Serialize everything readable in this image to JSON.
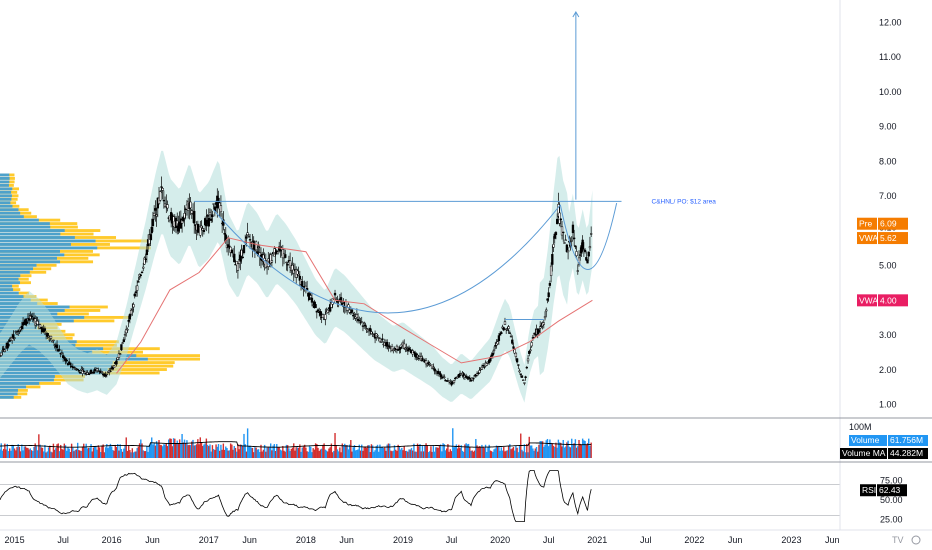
{
  "chart_data": {
    "type": "candlestick",
    "price_axis": {
      "ticks": [
        "12.00",
        "11.00",
        "10.00",
        "9.00",
        "8.00",
        "7.00",
        "6.10",
        "5.00",
        "4.00",
        "3.00",
        "2.00",
        "1.00"
      ],
      "tick_values": [
        12,
        11,
        10,
        9,
        8,
        7,
        6.1,
        5,
        4,
        3,
        2,
        1
      ],
      "ylim": [
        0.7,
        12.5
      ]
    },
    "time_axis": {
      "labels": [
        "2015",
        "Jul",
        "2016",
        "Jun",
        "2017",
        "Jun",
        "2018",
        "Jun",
        "2019",
        "Jul",
        "2020",
        "Jul",
        "2021",
        "Jul",
        "2022",
        "Jun",
        "2023",
        "Jun"
      ],
      "label_values": [
        2015.0,
        2015.5,
        2016.0,
        2016.42,
        2017.0,
        2017.42,
        2018.0,
        2018.42,
        2019.0,
        2019.5,
        2020.0,
        2020.5,
        2021.0,
        2021.5,
        2022.0,
        2022.42,
        2023.0,
        2023.42
      ],
      "xlim": [
        2014.85,
        2023.5
      ]
    },
    "series": [
      {
        "name": "Pre",
        "value": "6.09",
        "color": "#f57c00",
        "numeric": 6.09
      },
      {
        "name": "VWAP",
        "value": "5.62",
        "color": "#f57c00",
        "numeric": 5.62
      },
      {
        "name": "VWAP",
        "value": "4.00",
        "color": "#e91e63",
        "numeric": 4.0
      }
    ],
    "price_path": [
      [
        2014.85,
        2.4
      ],
      [
        2014.95,
        2.8
      ],
      [
        2015.05,
        3.2
      ],
      [
        2015.15,
        3.5
      ],
      [
        2015.25,
        3.3
      ],
      [
        2015.35,
        3.0
      ],
      [
        2015.45,
        2.6
      ],
      [
        2015.55,
        2.2
      ],
      [
        2015.65,
        2.0
      ],
      [
        2015.75,
        1.9
      ],
      [
        2015.85,
        2.0
      ],
      [
        2015.95,
        1.85
      ],
      [
        2016.05,
        2.2
      ],
      [
        2016.15,
        3.1
      ],
      [
        2016.25,
        4.2
      ],
      [
        2016.35,
        5.3
      ],
      [
        2016.45,
        6.5
      ],
      [
        2016.52,
        7.2
      ],
      [
        2016.6,
        6.4
      ],
      [
        2016.7,
        6.1
      ],
      [
        2016.8,
        6.8
      ],
      [
        2016.9,
        6.0
      ],
      [
        2017.0,
        6.3
      ],
      [
        2017.1,
        6.9
      ],
      [
        2017.2,
        5.5
      ],
      [
        2017.3,
        5.0
      ],
      [
        2017.4,
        5.8
      ],
      [
        2017.5,
        5.5
      ],
      [
        2017.6,
        5.0
      ],
      [
        2017.7,
        5.5
      ],
      [
        2017.8,
        5.2
      ],
      [
        2017.9,
        4.8
      ],
      [
        2018.0,
        4.3
      ],
      [
        2018.1,
        3.8
      ],
      [
        2018.2,
        3.5
      ],
      [
        2018.3,
        4.1
      ],
      [
        2018.4,
        3.9
      ],
      [
        2018.5,
        3.6
      ],
      [
        2018.6,
        3.3
      ],
      [
        2018.7,
        3.0
      ],
      [
        2018.8,
        2.8
      ],
      [
        2018.9,
        2.6
      ],
      [
        2019.0,
        2.7
      ],
      [
        2019.1,
        2.5
      ],
      [
        2019.2,
        2.3
      ],
      [
        2019.3,
        2.1
      ],
      [
        2019.4,
        1.8
      ],
      [
        2019.5,
        1.6
      ],
      [
        2019.6,
        1.9
      ],
      [
        2019.7,
        1.7
      ],
      [
        2019.8,
        2.0
      ],
      [
        2019.9,
        2.3
      ],
      [
        2020.0,
        3.0
      ],
      [
        2020.05,
        3.3
      ],
      [
        2020.1,
        3.1
      ],
      [
        2020.2,
        2.0
      ],
      [
        2020.25,
        1.6
      ],
      [
        2020.3,
        2.5
      ],
      [
        2020.35,
        3.0
      ],
      [
        2020.45,
        3.3
      ],
      [
        2020.5,
        4.2
      ],
      [
        2020.55,
        5.5
      ],
      [
        2020.6,
        6.6
      ],
      [
        2020.65,
        5.8
      ],
      [
        2020.7,
        5.4
      ],
      [
        2020.75,
        6.0
      ],
      [
        2020.8,
        5.0
      ],
      [
        2020.85,
        5.6
      ],
      [
        2020.9,
        5.0
      ],
      [
        2020.95,
        6.09
      ]
    ],
    "vwap_path": [
      [
        2016.05,
        1.9
      ],
      [
        2016.3,
        2.8
      ],
      [
        2016.6,
        4.3
      ],
      [
        2016.9,
        4.8
      ],
      [
        2017.2,
        5.8
      ],
      [
        2017.5,
        5.6
      ],
      [
        2018.0,
        5.4
      ],
      [
        2018.3,
        4.0
      ],
      [
        2018.6,
        3.9
      ],
      [
        2019.0,
        3.2
      ],
      [
        2019.3,
        2.7
      ],
      [
        2019.6,
        2.2
      ],
      [
        2020.0,
        2.4
      ],
      [
        2020.3,
        2.8
      ],
      [
        2020.6,
        3.4
      ],
      [
        2020.95,
        4.0
      ]
    ],
    "resistance": {
      "value": 6.85,
      "x_start": 2016.85,
      "x_end": 2021.25,
      "label": "C&HNL/ PO: $12 area"
    },
    "target_arrow": {
      "x": 2020.78,
      "from": 6.9,
      "to": 12.3
    },
    "volume": {
      "ticks": [
        "100M"
      ],
      "tick_values": [
        100
      ],
      "max": 120,
      "last": [
        {
          "name": "Volume",
          "value": "61.756M",
          "color": "#2196f3"
        },
        {
          "name": "Volume MA",
          "value": "44.282M",
          "color": "#000000"
        }
      ]
    },
    "rsi": {
      "ticks": [
        "75.00",
        "50.00",
        "25.00"
      ],
      "tick_values": [
        75,
        50,
        25
      ],
      "ylim": [
        15,
        95
      ],
      "band": [
        30,
        70
      ],
      "last": {
        "name": "RSI",
        "value": "62.43",
        "numeric": 62.43
      }
    }
  },
  "colors": {
    "band_fill": "#b2dfdb",
    "up": "#000000",
    "resistance": "#5b9bd5",
    "cup": "#5b9bd5",
    "vwap_line": "#e57373",
    "volume_profile_blue": "#2196f3",
    "volume_profile_yellow": "#ffc107",
    "volume_up": "#2196f3",
    "volume_down": "#d32f2f"
  },
  "watermark": "TV"
}
